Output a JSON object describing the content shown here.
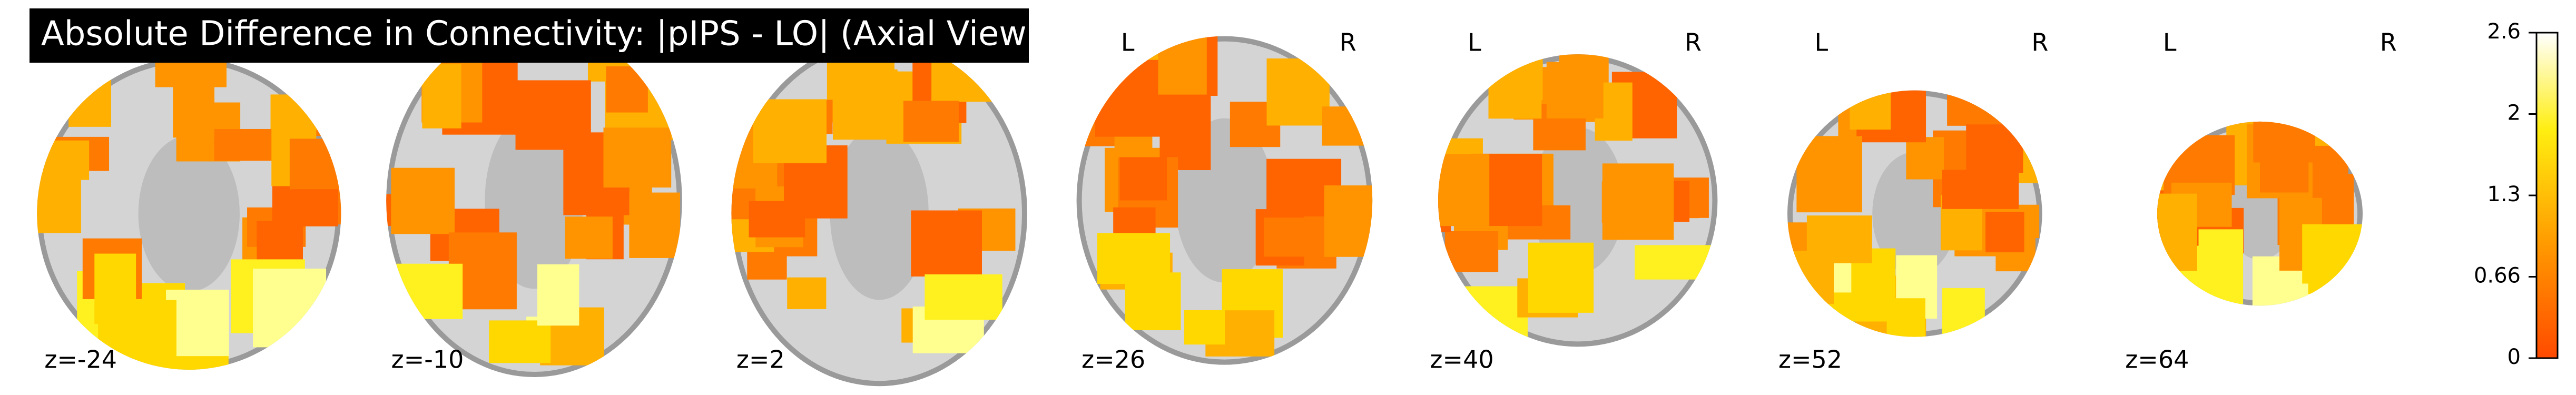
{
  "title": "Absolute Difference in Connectivity: |pIPS - LO| (Axial View)",
  "slices": [
    {
      "label": "z=-24"
    },
    {
      "label": "z=-10"
    },
    {
      "label": "z=2"
    },
    {
      "label": "z=26",
      "left": "L",
      "right": "R"
    },
    {
      "label": "z=40",
      "left": "L",
      "right": "R"
    },
    {
      "label": "z=52",
      "left": "L",
      "right": "R"
    },
    {
      "label": "z=64",
      "left": "L",
      "right": "R"
    }
  ],
  "colorbar": {
    "lim": [
      0,
      2.64
    ],
    "ticks": [
      0,
      0.66,
      {
        "value": 1.32,
        "label": "1.3"
      },
      {
        "value": 1.98,
        "label": "2"
      },
      {
        "value": 2.64,
        "label": "2.6"
      }
    ]
  }
}
